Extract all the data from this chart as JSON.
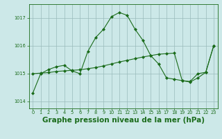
{
  "background_color": "#cce8e8",
  "grid_color": "#99bbbb",
  "line_color": "#1a6b1a",
  "xlabel": "Graphe pression niveau de la mer (hPa)",
  "xlabel_fontsize": 7.5,
  "ylim": [
    1013.75,
    1017.5
  ],
  "xlim": [
    -0.5,
    23.5
  ],
  "yticks": [
    1014,
    1015,
    1016,
    1017
  ],
  "xticks": [
    0,
    1,
    2,
    3,
    4,
    5,
    6,
    7,
    8,
    9,
    10,
    11,
    12,
    13,
    14,
    15,
    16,
    17,
    18,
    19,
    20,
    21,
    22,
    23
  ],
  "series1": [
    1014.3,
    1015.0,
    1015.15,
    1015.25,
    1015.3,
    1015.1,
    1015.0,
    1015.8,
    1016.3,
    1016.6,
    1017.05,
    1017.2,
    1017.1,
    1016.6,
    1016.2,
    1015.65,
    1015.35,
    1014.85,
    1014.8,
    1014.75,
    1014.7,
    1014.85,
    1015.05,
    1016.0
  ],
  "series2": [
    1015.0,
    1015.02,
    1015.04,
    1015.08,
    1015.1,
    1015.12,
    1015.14,
    1015.18,
    1015.22,
    1015.28,
    1015.35,
    1015.42,
    1015.48,
    1015.54,
    1015.6,
    1015.65,
    1015.7,
    1015.72,
    1015.74,
    1014.75,
    1014.72,
    1015.0,
    1015.05,
    1016.0
  ]
}
